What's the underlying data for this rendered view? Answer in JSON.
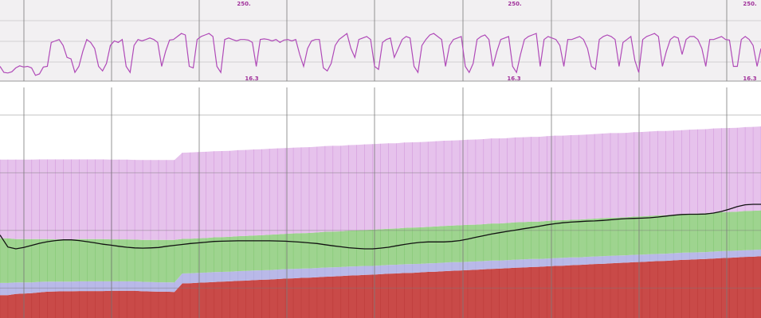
{
  "colors": {
    "top_panel_bg": "#f2f0f2",
    "trace": "#b04ab8",
    "trace_label": "#a0309a",
    "violet_band": "#e6c2ec",
    "violet_line": "#c47ad0",
    "green_band": "#9ed48f",
    "blue_band": "#b9b9e8",
    "red_band": "#c94a48",
    "red_line": "#b3302e",
    "black_line": "#111111",
    "grid": "#7a7a7a",
    "white_strip": "#ffffff"
  },
  "chart_data": [
    {
      "type": "line",
      "panel": "top",
      "title": "",
      "xlabel": "",
      "ylabel": "",
      "ylim": [
        16.3,
        250
      ],
      "tick_labels": [
        {
          "text": "250.",
          "label": "max-label-1"
        },
        {
          "text": "250.",
          "label": "max-label-2"
        },
        {
          "text": "250.",
          "label": "max-label-3"
        },
        {
          "text": "16.3",
          "label": "min-label-1"
        },
        {
          "text": "16.3",
          "label": "min-label-2"
        },
        {
          "text": "16.3",
          "label": "min-label-3"
        }
      ],
      "series": [
        {
          "values": [
            60,
            40,
            38,
            42,
            55,
            62,
            58,
            60,
            55,
            30,
            35,
            58,
            60,
            140,
            145,
            150,
            130,
            90,
            85,
            40,
            60,
            110,
            150,
            140,
            120,
            60,
            45,
            70,
            130,
            145,
            140,
            150,
            60,
            40,
            130,
            150,
            145,
            150,
            155,
            150,
            140,
            60,
            110,
            148,
            150,
            160,
            170,
            165,
            60,
            55,
            150,
            160,
            165,
            170,
            160,
            60,
            40,
            150,
            155,
            150,
            145,
            150,
            150,
            148,
            140,
            60,
            150,
            152,
            150,
            145,
            150,
            140,
            148,
            150,
            145,
            150,
            100,
            60,
            120,
            145,
            150,
            150,
            55,
            45,
            70,
            130,
            150,
            160,
            170,
            120,
            90,
            150,
            155,
            160,
            150,
            60,
            50,
            140,
            150,
            155,
            90,
            120,
            150,
            160,
            155,
            60,
            40,
            130,
            150,
            165,
            170,
            160,
            150,
            60,
            130,
            150,
            155,
            160,
            60,
            40,
            70,
            150,
            160,
            165,
            150,
            60,
            110,
            150,
            155,
            160,
            60,
            40,
            100,
            150,
            160,
            165,
            170,
            60,
            150,
            160,
            155,
            150,
            130,
            60,
            150,
            150,
            155,
            160,
            150,
            120,
            60,
            50,
            150,
            160,
            165,
            160,
            150,
            60,
            140,
            150,
            160,
            80,
            40,
            150,
            160,
            165,
            170,
            160,
            60,
            110,
            150,
            160,
            155,
            100,
            150,
            160,
            160,
            150,
            120,
            60,
            150,
            150,
            155,
            160,
            150,
            148,
            60,
            60,
            150,
            160,
            150,
            130,
            60,
            120
          ]
        }
      ]
    },
    {
      "type": "area",
      "panel": "bottom",
      "title": "",
      "xlabel": "",
      "ylabel": "",
      "ylim": [
        0,
        100
      ],
      "grid": true,
      "stacking": "stacked",
      "x": [
        0,
        1,
        2,
        3,
        4,
        5,
        6,
        7,
        8,
        9,
        10,
        11,
        12,
        13,
        14,
        15,
        16,
        17,
        18,
        19,
        20,
        21,
        22,
        23,
        24,
        25,
        26,
        27,
        28,
        29,
        30,
        31,
        32,
        33,
        34,
        35,
        36,
        37,
        38,
        39,
        40,
        41,
        42,
        43,
        44,
        45,
        46,
        47,
        48,
        49,
        50,
        51,
        52,
        53,
        54,
        55,
        56,
        57,
        58,
        59,
        60,
        61,
        62,
        63,
        64,
        65,
        66,
        67,
        68,
        69,
        70,
        71,
        72,
        73,
        74,
        75,
        76,
        77,
        78,
        79,
        80,
        81,
        82,
        83,
        84,
        85,
        86,
        87,
        88,
        89,
        90,
        91,
        92,
        93,
        94,
        95,
        96
      ],
      "series": [
        {
          "color": "#c94a48",
          "values": [
            9.9,
            9.9,
            10.4,
            10.6,
            10.8,
            11.1,
            11.4,
            11.5,
            11.6,
            11.6,
            11.7,
            11.7,
            11.7,
            11.7,
            11.8,
            11.8,
            11.8,
            11.8,
            11.6,
            11.5,
            11.4,
            11.4,
            11.3,
            15.0,
            15.1,
            15.3,
            15.4,
            15.6,
            15.8,
            15.9,
            16.1,
            16.2,
            16.4,
            16.6,
            16.7,
            16.9,
            17.1,
            17.2,
            17.4,
            17.5,
            17.7,
            17.9,
            18.0,
            18.2,
            18.4,
            18.5,
            18.7,
            18.8,
            19.0,
            19.2,
            19.3,
            19.5,
            19.6,
            19.8,
            20.0,
            20.1,
            20.3,
            20.5,
            20.6,
            20.8,
            20.9,
            21.1,
            21.3,
            21.4,
            21.6,
            21.8,
            21.9,
            22.1,
            22.2,
            22.4,
            22.6,
            22.7,
            22.9,
            23.0,
            23.2,
            23.4,
            23.5,
            23.7,
            23.9,
            24.0,
            24.2,
            24.3,
            24.5,
            24.7,
            24.8,
            25.0,
            25.2,
            25.3,
            25.5,
            25.6,
            25.8,
            26.0,
            26.1,
            26.3,
            26.5,
            26.6,
            26.8
          ]
        },
        {
          "color": "#b9b9e8",
          "values": [
            5.3,
            5.3,
            5.0,
            4.8,
            4.6,
            4.6,
            4.4,
            4.3,
            4.2,
            4.2,
            4.2,
            4.2,
            4.2,
            4.2,
            4.1,
            4.1,
            4.1,
            4.1,
            4.1,
            4.1,
            4.1,
            4.1,
            4.1,
            4.3,
            4.3,
            4.3,
            4.3,
            4.3,
            4.2,
            4.2,
            4.2,
            4.2,
            4.2,
            4.1,
            4.1,
            4.1,
            4.1,
            4.1,
            4.0,
            4.0,
            4.0,
            4.0,
            4.0,
            3.9,
            3.9,
            3.9,
            3.9,
            3.8,
            3.8,
            3.8,
            3.8,
            3.8,
            3.8,
            3.7,
            3.7,
            3.7,
            3.7,
            3.7,
            3.6,
            3.6,
            3.6,
            3.6,
            3.6,
            3.5,
            3.5,
            3.5,
            3.5,
            3.5,
            3.4,
            3.4,
            3.4,
            3.4,
            3.4,
            3.3,
            3.3,
            3.3,
            3.3,
            3.3,
            3.2,
            3.2,
            3.2,
            3.2,
            3.2,
            3.1,
            3.1,
            3.1,
            3.1,
            3.1,
            3.0,
            3.0,
            3.0,
            3.0,
            3.0,
            2.9,
            2.9,
            2.9,
            2.9
          ]
        },
        {
          "color": "#9ed48f",
          "values": [
            19.4,
            19.4,
            18.8,
            18.8,
            18.8,
            18.5,
            18.4,
            18.3,
            18.4,
            18.3,
            18.3,
            18.3,
            18.3,
            18.3,
            18.2,
            18.2,
            18.2,
            18.1,
            18.2,
            18.3,
            18.4,
            18.4,
            18.5,
            15.0,
            15.0,
            15.0,
            15.0,
            15.1,
            15.1,
            15.1,
            15.2,
            15.2,
            15.2,
            15.2,
            15.3,
            15.3,
            15.3,
            15.4,
            15.4,
            15.4,
            15.4,
            15.5,
            15.5,
            15.5,
            15.6,
            15.6,
            15.6,
            15.7,
            15.7,
            15.7,
            15.7,
            15.8,
            15.8,
            15.8,
            15.8,
            15.9,
            15.9,
            15.9,
            16.0,
            16.0,
            16.0,
            16.0,
            16.1,
            16.1,
            16.1,
            16.2,
            16.2,
            16.2,
            16.2,
            16.3,
            16.3,
            16.3,
            16.3,
            16.4,
            16.4,
            16.4,
            16.5,
            16.5,
            16.5,
            16.5,
            16.6,
            16.6,
            16.6,
            16.7,
            16.7,
            16.7,
            16.7,
            16.8,
            16.8,
            16.8,
            16.9,
            16.9,
            16.9,
            16.9,
            17.0,
            17.0,
            17.0
          ]
        },
        {
          "color": "#e6c2ec",
          "values": [
            34.1,
            34.1,
            34.5,
            34.5,
            34.5,
            34.6,
            34.6,
            34.7,
            34.6,
            34.7,
            34.6,
            34.6,
            34.6,
            34.6,
            34.6,
            34.6,
            34.6,
            34.6,
            34.6,
            34.6,
            34.6,
            34.6,
            34.6,
            37.4,
            37.4,
            37.4,
            37.4,
            37.3,
            37.3,
            37.3,
            37.3,
            37.3,
            37.3,
            37.3,
            37.3,
            37.3,
            37.2,
            37.2,
            37.2,
            37.2,
            37.2,
            37.2,
            37.2,
            37.1,
            37.1,
            37.1,
            37.1,
            37.1,
            37.1,
            37.1,
            37.0,
            37.0,
            37.0,
            37.0,
            37.0,
            37.0,
            37.0,
            36.9,
            36.9,
            36.9,
            36.9,
            36.9,
            36.9,
            36.9,
            36.8,
            36.8,
            36.8,
            36.8,
            36.8,
            36.8,
            36.8,
            36.7,
            36.7,
            36.7,
            36.7,
            36.7,
            36.7,
            36.7,
            36.6,
            36.6,
            36.6,
            36.6,
            36.6,
            36.6,
            36.5,
            36.5,
            36.5,
            36.5,
            36.5,
            36.5,
            36.5,
            36.4,
            36.4,
            36.4,
            36.4,
            36.4,
            36.4
          ]
        }
      ],
      "line_series": [
        {
          "color": "#111111",
          "values": [
            36.0,
            30.8,
            30.0,
            30.6,
            31.5,
            32.4,
            33.1,
            33.6,
            33.9,
            33.9,
            33.6,
            33.1,
            32.6,
            32.0,
            31.6,
            31.1,
            30.7,
            30.4,
            30.3,
            30.4,
            30.6,
            31.1,
            31.5,
            31.9,
            32.3,
            32.6,
            32.9,
            33.2,
            33.3,
            33.4,
            33.5,
            33.5,
            33.5,
            33.5,
            33.5,
            33.4,
            33.3,
            33.1,
            32.9,
            32.6,
            32.3,
            31.8,
            31.3,
            30.9,
            30.5,
            30.2,
            30.0,
            30.0,
            30.3,
            30.7,
            31.3,
            31.9,
            32.4,
            32.8,
            33.0,
            33.0,
            33.0,
            33.2,
            33.6,
            34.2,
            35.0,
            35.7,
            36.4,
            37.0,
            37.6,
            38.1,
            38.7,
            39.2,
            39.8,
            40.4,
            40.9,
            41.3,
            41.6,
            41.8,
            42.0,
            42.1,
            42.3,
            42.6,
            42.9,
            43.1,
            43.2,
            43.3,
            43.5,
            43.8,
            44.2,
            44.6,
            44.9,
            45.0,
            45.0,
            45.1,
            45.5,
            46.2,
            47.2,
            48.3,
            49.1,
            49.3,
            49.3
          ]
        }
      ]
    }
  ]
}
